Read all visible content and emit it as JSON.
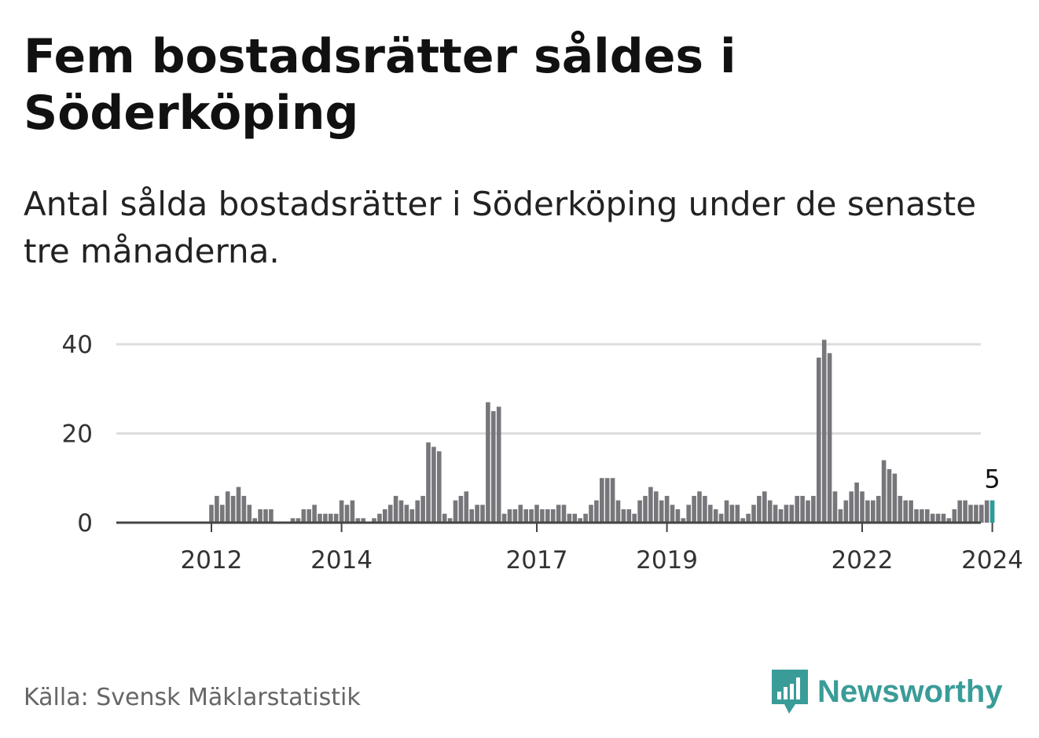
{
  "header": {
    "title": "Fem bostadsrätter såldes i Söderköping",
    "subtitle": "Antal sålda bostadsrätter i Söderköping under de senaste tre månaderna."
  },
  "footer": {
    "source": "Källa: Svensk Mäklarstatistik",
    "brand": "Newsworthy"
  },
  "colors": {
    "bar": "#77767b",
    "highlight": "#2a9d97",
    "grid": "#dddddd",
    "brand": "#3a9c98"
  },
  "chart_data": {
    "type": "bar",
    "title": "Fem bostadsrätter såldes i Söderköping",
    "xlabel": "",
    "ylabel": "",
    "ylim": [
      0,
      40
    ],
    "yticks": [
      0,
      20,
      40
    ],
    "grid": true,
    "start": "2011-01",
    "xticks": [
      {
        "label": "2012",
        "index": 12
      },
      {
        "label": "2014",
        "index": 36
      },
      {
        "label": "2017",
        "index": 72
      },
      {
        "label": "2019",
        "index": 96
      },
      {
        "label": "2022",
        "index": 132
      },
      {
        "label": "2024",
        "index": 156
      }
    ],
    "highlight_index": 156,
    "highlight_label": "5",
    "values": [
      0,
      0,
      0,
      0,
      0,
      0,
      0,
      0,
      0,
      0,
      0,
      0,
      4,
      6,
      4,
      7,
      6,
      8,
      6,
      4,
      1,
      3,
      3,
      3,
      0,
      0,
      0,
      1,
      1,
      3,
      3,
      4,
      2,
      2,
      2,
      2,
      5,
      4,
      5,
      1,
      1,
      0,
      1,
      2,
      3,
      4,
      6,
      5,
      4,
      3,
      5,
      6,
      18,
      17,
      16,
      2,
      1,
      5,
      6,
      7,
      3,
      4,
      4,
      27,
      25,
      26,
      2,
      3,
      3,
      4,
      3,
      3,
      4,
      3,
      3,
      3,
      4,
      4,
      2,
      2,
      1,
      2,
      4,
      5,
      10,
      10,
      10,
      5,
      3,
      3,
      2,
      5,
      6,
      8,
      7,
      5,
      6,
      4,
      3,
      1,
      4,
      6,
      7,
      6,
      4,
      3,
      2,
      5,
      4,
      4,
      1,
      2,
      4,
      6,
      7,
      5,
      4,
      3,
      4,
      4,
      6,
      6,
      5,
      6,
      37,
      41,
      38,
      7,
      3,
      5,
      7,
      9,
      7,
      5,
      5,
      6,
      14,
      12,
      11,
      6,
      5,
      5,
      3,
      3,
      3,
      2,
      2,
      2,
      1,
      3,
      5,
      5,
      4,
      4,
      4,
      5,
      5
    ]
  }
}
